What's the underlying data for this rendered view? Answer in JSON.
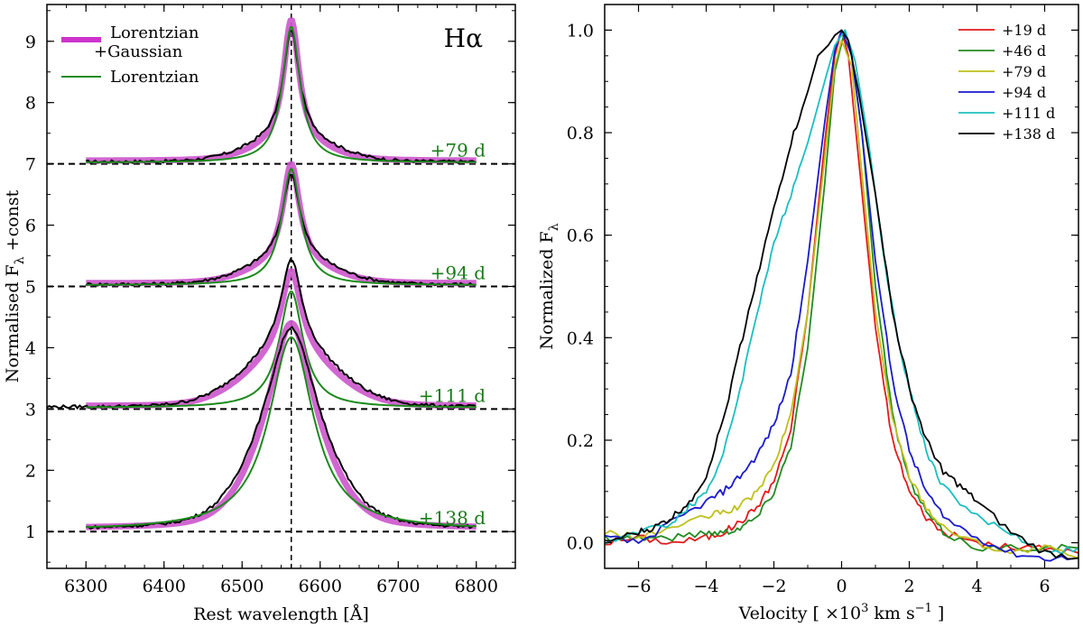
{
  "chart_data": [
    {
      "type": "line",
      "panel": "left",
      "title": "Hα",
      "xlabel": "Rest wavelength [Å]",
      "ylabel": "Normalised F",
      "ylabel_sub": "λ",
      "ylabel_tail": " +const",
      "xlim": [
        6250,
        6850
      ],
      "ylim": [
        0.4,
        9.6
      ],
      "xticks": [
        6300,
        6400,
        6500,
        6600,
        6700,
        6800
      ],
      "yticks": [
        1,
        2,
        3,
        4,
        5,
        6,
        7,
        8,
        9
      ],
      "center_line": 6563,
      "legend": {
        "position": "top-left",
        "entries": [
          {
            "label": "Lorentzian\n+Gaussian",
            "color": "#cc33cc"
          },
          {
            "label": "Lorentzian",
            "color": "#1b8a1b"
          }
        ]
      },
      "epochs": [
        {
          "label": "+79 d",
          "offset": 7,
          "peak": 9.3,
          "lor_peak": 9.22,
          "lor_width": 12,
          "gauss_amp": 0.25,
          "gauss_width": 45,
          "color": "#1b7a1b"
        },
        {
          "label": "+94 d",
          "offset": 5,
          "peak": 6.95,
          "lor_peak": 6.9,
          "lor_width": 13,
          "gauss_amp": 0.3,
          "gauss_width": 48,
          "color": "#1b7a1b"
        },
        {
          "label": "+111 d",
          "offset": 3,
          "peak": 5.2,
          "lor_peak": 4.9,
          "lor_width": 16,
          "gauss_amp": 0.8,
          "gauss_width": 55,
          "color": "#1b7a1b"
        },
        {
          "label": "+138 d",
          "offset": 1,
          "peak": 4.35,
          "lor_peak": 4.15,
          "lor_width": 30,
          "gauss_amp": 1.4,
          "gauss_width": 45,
          "color": "#1b7a1b"
        }
      ]
    },
    {
      "type": "line",
      "panel": "right",
      "xlabel": "Velocity [ ×10",
      "xlabel_sup": "3",
      "xlabel_tail": "  km s",
      "xlabel_sup2": "−1",
      "xlabel_end": " ]",
      "ylabel": "Normalized F",
      "ylabel_sub": "λ",
      "xlim": [
        -7,
        7
      ],
      "ylim": [
        -0.05,
        1.05
      ],
      "xticks": [
        -6,
        -4,
        -2,
        0,
        2,
        4,
        6
      ],
      "yticks": [
        0.0,
        0.2,
        0.4,
        0.6,
        0.8,
        1.0
      ],
      "legend": {
        "position": "top-right"
      },
      "series": [
        {
          "name": "+19 d",
          "color": "#e41a1c",
          "x": [
            -7,
            -6,
            -5,
            -4,
            -3.5,
            -3,
            -2.5,
            -2,
            -1.5,
            -1,
            -0.5,
            -0.2,
            0,
            0.2,
            0.5,
            1,
            1.5,
            2,
            2.5,
            3,
            4,
            5,
            6,
            7
          ],
          "y": [
            0.0,
            0.01,
            0.0,
            0.01,
            0.02,
            0.04,
            0.07,
            0.12,
            0.22,
            0.45,
            0.78,
            0.95,
            1.0,
            0.95,
            0.75,
            0.42,
            0.2,
            0.1,
            0.05,
            0.02,
            0.0,
            -0.01,
            -0.01,
            -0.02
          ]
        },
        {
          "name": "+46 d",
          "color": "#228b22",
          "x": [
            -7,
            -6,
            -5,
            -4,
            -3.5,
            -3,
            -2.5,
            -2,
            -1.5,
            -1,
            -0.5,
            -0.2,
            0.1,
            0.3,
            0.6,
            1,
            1.5,
            2,
            2.5,
            3,
            4,
            5,
            6,
            7
          ],
          "y": [
            0.01,
            0.01,
            0.01,
            0.02,
            0.02,
            0.03,
            0.05,
            0.1,
            0.19,
            0.38,
            0.7,
            0.92,
            1.0,
            0.95,
            0.8,
            0.5,
            0.25,
            0.12,
            0.06,
            0.02,
            -0.01,
            -0.01,
            -0.01,
            -0.01
          ]
        },
        {
          "name": "+79 d",
          "color": "#bfbf1b",
          "x": [
            -7,
            -6,
            -5,
            -4,
            -3.5,
            -3,
            -2.5,
            -2,
            -1.5,
            -1,
            -0.5,
            -0.2,
            0,
            0.3,
            0.6,
            1,
            1.5,
            2,
            2.5,
            3,
            4,
            5,
            6,
            7
          ],
          "y": [
            0.02,
            0.01,
            0.03,
            0.05,
            0.06,
            0.07,
            0.1,
            0.15,
            0.25,
            0.45,
            0.75,
            0.93,
            0.98,
            0.93,
            0.72,
            0.45,
            0.24,
            0.13,
            0.07,
            0.03,
            0.0,
            -0.02,
            -0.01,
            -0.03
          ]
        },
        {
          "name": "+94 d",
          "color": "#1a1acc",
          "x": [
            -7,
            -6,
            -5,
            -4,
            -3.5,
            -3,
            -2.5,
            -2,
            -1.5,
            -1,
            -0.5,
            -0.2,
            0,
            0.3,
            0.6,
            1,
            1.5,
            2,
            2.5,
            3,
            4,
            5,
            6,
            7
          ],
          "y": [
            0.01,
            0.0,
            0.04,
            0.08,
            0.1,
            0.13,
            0.17,
            0.23,
            0.33,
            0.55,
            0.82,
            0.96,
            1.0,
            0.95,
            0.8,
            0.55,
            0.32,
            0.18,
            0.1,
            0.05,
            0.01,
            -0.02,
            -0.03,
            -0.03
          ]
        },
        {
          "name": "+111 d",
          "color": "#1bbfbf",
          "x": [
            -7,
            -6,
            -5,
            -4.5,
            -4,
            -3.5,
            -3,
            -2.5,
            -2,
            -1.5,
            -1,
            -0.5,
            -0.2,
            0.1,
            0.4,
            0.8,
            1.2,
            1.6,
            2,
            2.5,
            3,
            4,
            5,
            6,
            7
          ],
          "y": [
            0.0,
            0.02,
            0.04,
            0.07,
            0.1,
            0.17,
            0.3,
            0.45,
            0.58,
            0.68,
            0.78,
            0.9,
            0.97,
            1.0,
            0.94,
            0.78,
            0.58,
            0.42,
            0.3,
            0.18,
            0.11,
            0.05,
            0.02,
            -0.02,
            -0.01
          ]
        },
        {
          "name": "+138 d",
          "color": "#000000",
          "x": [
            -7,
            -6,
            -5.5,
            -5,
            -4.5,
            -4,
            -3.5,
            -3,
            -2.5,
            -2,
            -1.5,
            -1,
            -0.7,
            -0.4,
            -0.2,
            0,
            0.2,
            0.5,
            1,
            1.5,
            2,
            2.5,
            3,
            3.5,
            4,
            5,
            6,
            7
          ],
          "y": [
            0.0,
            0.02,
            0.03,
            0.05,
            0.08,
            0.13,
            0.24,
            0.38,
            0.52,
            0.65,
            0.78,
            0.88,
            0.95,
            0.97,
            0.99,
            1.0,
            0.98,
            0.88,
            0.68,
            0.45,
            0.3,
            0.2,
            0.14,
            0.11,
            0.08,
            0.02,
            -0.02,
            -0.03
          ]
        }
      ]
    }
  ]
}
